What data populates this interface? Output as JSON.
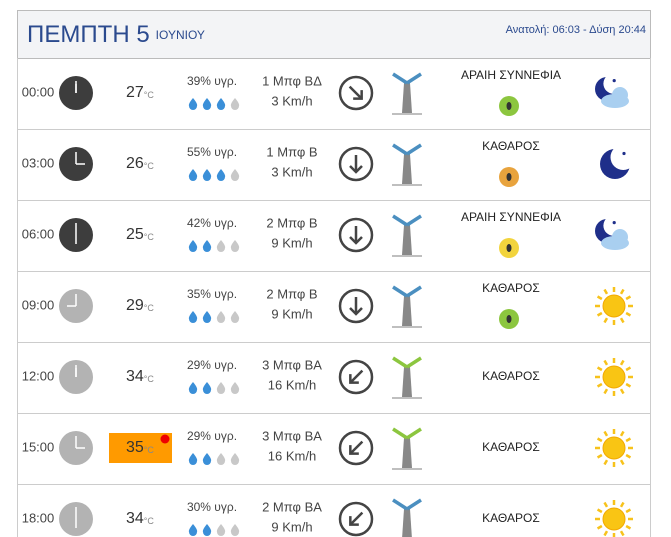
{
  "header": {
    "day": "ΠΕΜΠΤΗ 5",
    "month": "ΙΟΥΝΙΟΥ",
    "sun": "Ανατολή: 06:03  - Δύση 20:44"
  },
  "temp_unit": "°C",
  "rows": [
    {
      "time": "00:00",
      "temp": "27",
      "humidity": "39% υγρ.",
      "wind": "1 Μπφ ΒΔ",
      "speed": "3 Km/h",
      "sky": "ΑΡΑΙΗ ΣΥΝΝΕΦΙΑ"
    },
    {
      "time": "03:00",
      "temp": "26",
      "humidity": "55% υγρ.",
      "wind": "1 Μπφ Β",
      "speed": "3 Km/h",
      "sky": "ΚΑΘΑΡΟΣ"
    },
    {
      "time": "06:00",
      "temp": "25",
      "humidity": "42% υγρ.",
      "wind": "2 Μπφ Β",
      "speed": "9 Km/h",
      "sky": "ΑΡΑΙΗ ΣΥΝΝΕΦΙΑ"
    },
    {
      "time": "09:00",
      "temp": "29",
      "humidity": "35% υγρ.",
      "wind": "2 Μπφ Β",
      "speed": "9 Km/h",
      "sky": "ΚΑΘΑΡΟΣ"
    },
    {
      "time": "12:00",
      "temp": "34",
      "humidity": "29% υγρ.",
      "wind": "3 Μπφ ΒΑ",
      "speed": "16 Km/h",
      "sky": "ΚΑΘΑΡΟΣ"
    },
    {
      "time": "15:00",
      "temp": "35",
      "humidity": "29% υγρ.",
      "wind": "3 Μπφ ΒΑ",
      "speed": "16 Km/h",
      "sky": "ΚΑΘΑΡΟΣ"
    },
    {
      "time": "18:00",
      "temp": "34",
      "humidity": "30% υγρ.",
      "wind": "2 Μπφ ΒΑ",
      "speed": "9 Km/h",
      "sky": "ΚΑΘΑΡΟΣ"
    }
  ]
}
